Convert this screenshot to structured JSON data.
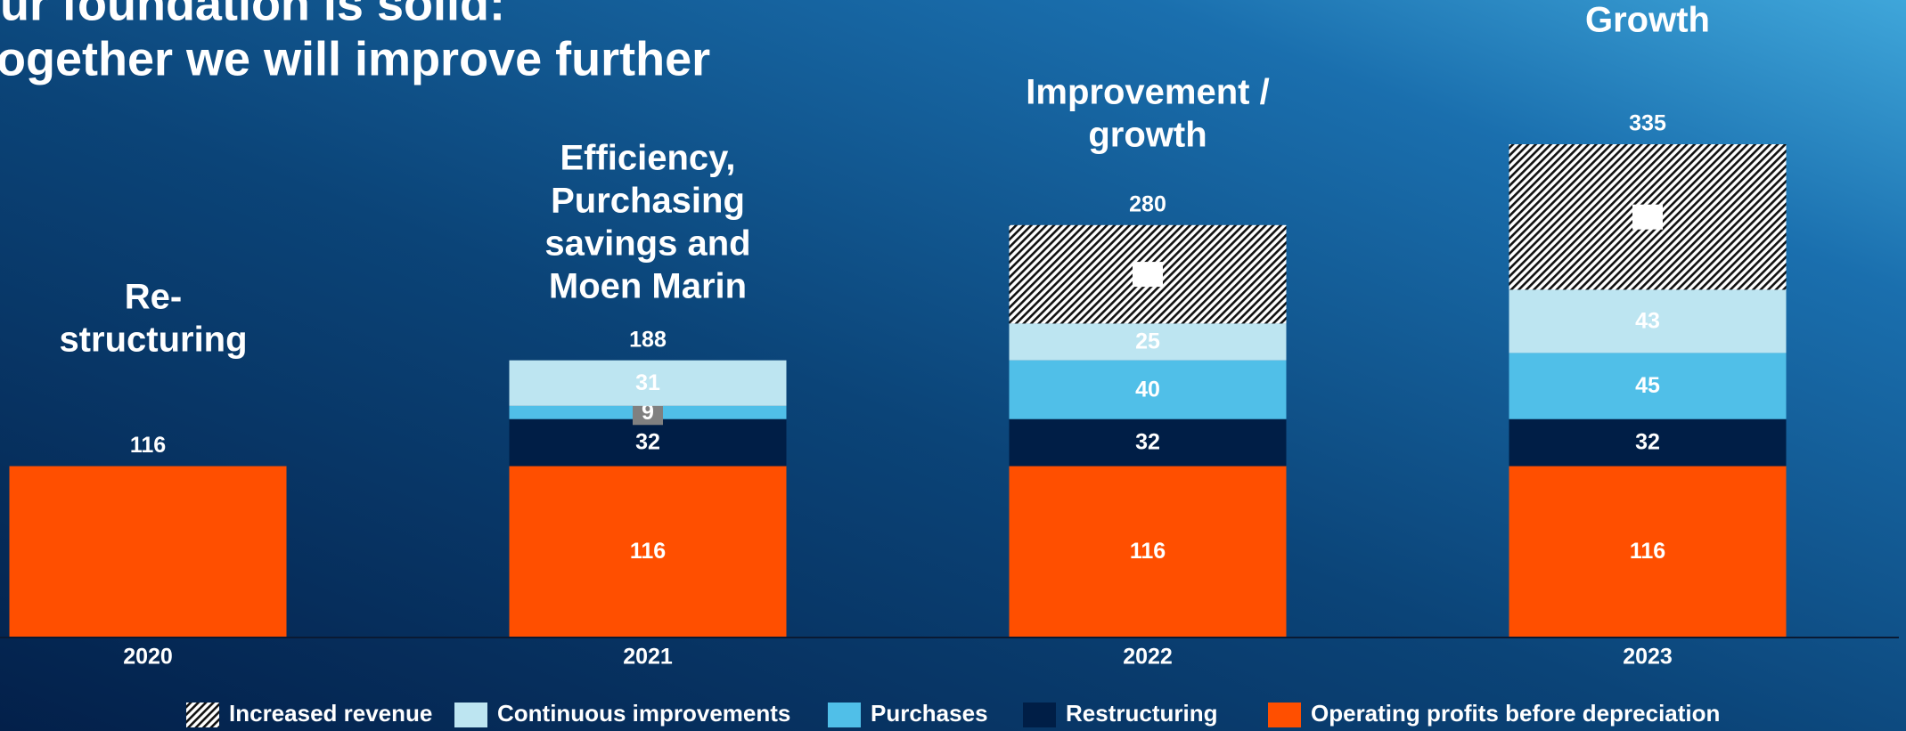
{
  "chart_data": {
    "type": "stacked_bar",
    "title": [
      "Our foundation is solid:",
      "Together we will improve further"
    ],
    "annotations": [
      [
        "Re-",
        "structuring"
      ],
      [
        "Efficiency,",
        "Purchasing",
        "savings and",
        "Moen Marin"
      ],
      [
        "Improvement /",
        "growth"
      ],
      [
        "Growth"
      ]
    ],
    "categories": [
      "2020",
      "2021",
      "2022",
      "2023"
    ],
    "totals": [
      116,
      188,
      280,
      335
    ],
    "series": [
      {
        "name": "Operating profits before depreciation",
        "color": "#ff4f00",
        "label_color": "#ffffff",
        "values": [
          116,
          116,
          116,
          116
        ]
      },
      {
        "name": "Restructuring",
        "color": "#001e46",
        "label_color": "#ffffff",
        "values": [
          null,
          32,
          32,
          32
        ]
      },
      {
        "name": "Purchases",
        "color": "#50bfe8",
        "label_color": "#ffffff",
        "values": [
          null,
          9,
          40,
          45
        ]
      },
      {
        "name": "Continuous improvements",
        "color": "#bde5f1",
        "label_color": "#001e46",
        "values": [
          null,
          31,
          25,
          43
        ]
      },
      {
        "name": "Increased revenue",
        "color": "hatch",
        "label_color": "#001e46",
        "values": [
          null,
          null,
          67,
          99
        ]
      }
    ]
  }
}
